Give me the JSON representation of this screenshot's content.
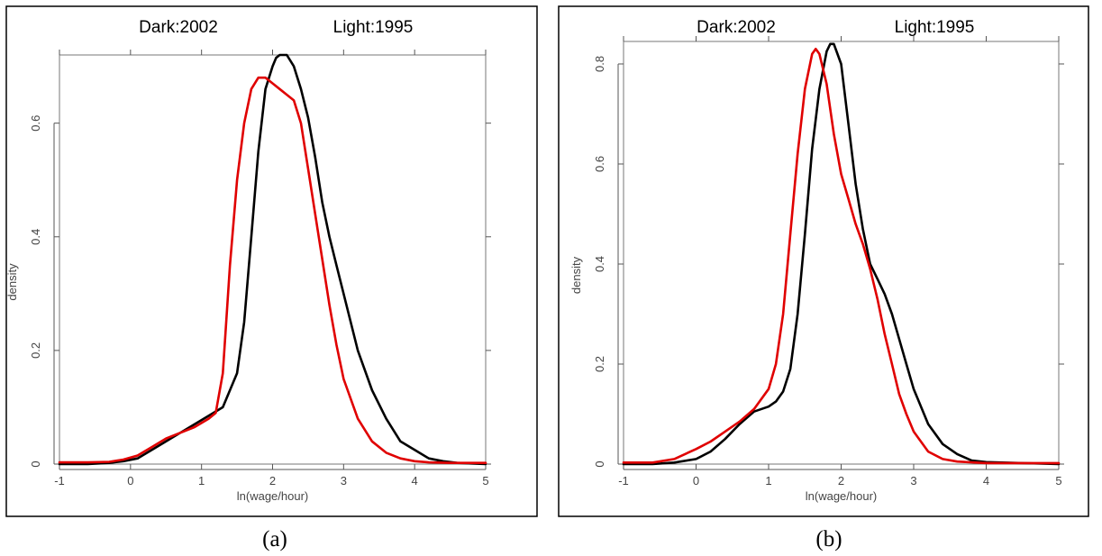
{
  "chart_data": [
    {
      "type": "line",
      "panel_label": "(a)",
      "legend": {
        "left": "Dark:2002",
        "right": "Light:1995",
        "placement": "top"
      },
      "xlabel": "ln(wage/hour)",
      "ylabel": "density",
      "xlim": [
        -1,
        5
      ],
      "ylim": [
        0,
        0.72
      ],
      "xticks": [
        -1,
        0,
        1,
        2,
        3,
        4,
        5
      ],
      "yticks": [
        0,
        0.2,
        0.4,
        0.6
      ],
      "ytick_labels": [
        "0",
        "0.2",
        "0.4",
        "0.6"
      ],
      "series": [
        {
          "color": "#000000",
          "x": [
            -1.0,
            -0.6,
            -0.3,
            -0.1,
            0.1,
            0.3,
            0.5,
            0.7,
            0.9,
            1.1,
            1.3,
            1.4,
            1.5,
            1.6,
            1.7,
            1.8,
            1.9,
            2.0,
            2.05,
            2.1,
            2.2,
            2.3,
            2.4,
            2.5,
            2.6,
            2.7,
            2.8,
            2.9,
            3.0,
            3.2,
            3.4,
            3.6,
            3.8,
            4.0,
            4.2,
            4.4,
            4.6,
            5.0
          ],
          "y": [
            0.0,
            0.0,
            0.002,
            0.005,
            0.01,
            0.025,
            0.04,
            0.055,
            0.07,
            0.085,
            0.1,
            0.13,
            0.16,
            0.25,
            0.4,
            0.55,
            0.66,
            0.7,
            0.715,
            0.72,
            0.72,
            0.7,
            0.66,
            0.61,
            0.54,
            0.46,
            0.4,
            0.35,
            0.3,
            0.2,
            0.13,
            0.08,
            0.04,
            0.025,
            0.01,
            0.005,
            0.002,
            0.0
          ]
        },
        {
          "color": "#e00000",
          "x": [
            -1.0,
            -0.6,
            -0.3,
            -0.1,
            0.1,
            0.3,
            0.5,
            0.7,
            0.9,
            1.1,
            1.2,
            1.3,
            1.4,
            1.5,
            1.6,
            1.7,
            1.8,
            1.9,
            2.0,
            2.1,
            2.2,
            2.3,
            2.4,
            2.5,
            2.6,
            2.7,
            2.8,
            2.9,
            3.0,
            3.2,
            3.4,
            3.6,
            3.8,
            4.0,
            4.2,
            4.5,
            5.0
          ],
          "y": [
            0.003,
            0.003,
            0.004,
            0.008,
            0.015,
            0.03,
            0.045,
            0.055,
            0.065,
            0.08,
            0.09,
            0.16,
            0.35,
            0.5,
            0.6,
            0.66,
            0.68,
            0.68,
            0.67,
            0.66,
            0.65,
            0.64,
            0.6,
            0.52,
            0.44,
            0.36,
            0.28,
            0.21,
            0.15,
            0.08,
            0.04,
            0.02,
            0.01,
            0.005,
            0.003,
            0.002,
            0.002
          ]
        }
      ]
    },
    {
      "type": "line",
      "panel_label": "(b)",
      "legend": {
        "left": "Dark:2002",
        "right": "Light:1995",
        "placement": "top"
      },
      "xlabel": "ln(wage/hour)",
      "ylabel": "density",
      "xlim": [
        -1,
        5
      ],
      "ylim": [
        0,
        0.845
      ],
      "xticks": [
        -1,
        0,
        1,
        2,
        3,
        4,
        5
      ],
      "yticks": [
        0,
        0.2,
        0.4,
        0.6,
        0.8
      ],
      "ytick_labels": [
        "0",
        "0.2",
        "0.4",
        "0.6",
        "0.8"
      ],
      "series": [
        {
          "color": "#000000",
          "x": [
            -1.0,
            -0.6,
            -0.3,
            0.0,
            0.2,
            0.4,
            0.6,
            0.8,
            1.0,
            1.1,
            1.2,
            1.3,
            1.4,
            1.5,
            1.6,
            1.7,
            1.8,
            1.85,
            1.9,
            2.0,
            2.1,
            2.2,
            2.3,
            2.4,
            2.5,
            2.6,
            2.7,
            2.8,
            2.9,
            3.0,
            3.2,
            3.4,
            3.6,
            3.8,
            4.0,
            4.5,
            5.0
          ],
          "y": [
            0.0,
            0.0,
            0.003,
            0.01,
            0.025,
            0.05,
            0.08,
            0.105,
            0.115,
            0.125,
            0.145,
            0.19,
            0.3,
            0.46,
            0.63,
            0.75,
            0.825,
            0.84,
            0.84,
            0.8,
            0.68,
            0.56,
            0.47,
            0.4,
            0.37,
            0.34,
            0.3,
            0.25,
            0.2,
            0.15,
            0.08,
            0.04,
            0.02,
            0.007,
            0.004,
            0.002,
            0.0
          ]
        },
        {
          "color": "#e00000",
          "x": [
            -1.0,
            -0.6,
            -0.3,
            0.0,
            0.2,
            0.4,
            0.6,
            0.8,
            1.0,
            1.1,
            1.2,
            1.3,
            1.4,
            1.5,
            1.6,
            1.65,
            1.7,
            1.8,
            1.9,
            2.0,
            2.1,
            2.2,
            2.3,
            2.4,
            2.5,
            2.6,
            2.7,
            2.8,
            2.9,
            3.0,
            3.2,
            3.4,
            3.6,
            4.0,
            5.0
          ],
          "y": [
            0.003,
            0.003,
            0.01,
            0.03,
            0.045,
            0.065,
            0.085,
            0.11,
            0.15,
            0.2,
            0.3,
            0.46,
            0.62,
            0.75,
            0.82,
            0.83,
            0.82,
            0.76,
            0.66,
            0.58,
            0.53,
            0.48,
            0.44,
            0.39,
            0.33,
            0.26,
            0.2,
            0.14,
            0.1,
            0.065,
            0.025,
            0.01,
            0.005,
            0.002,
            0.002
          ]
        }
      ]
    }
  ]
}
